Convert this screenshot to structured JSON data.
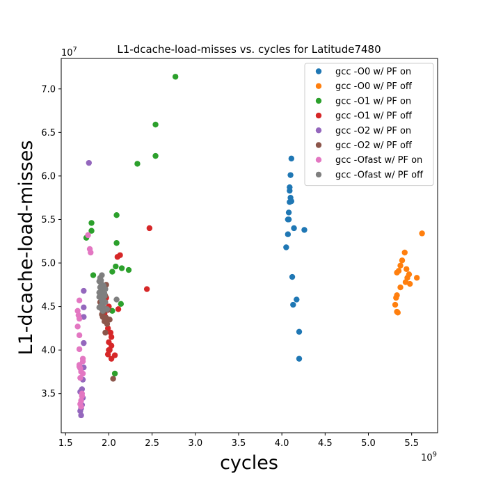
{
  "chart_data": {
    "type": "scatter",
    "title": "L1-dcache-load-misses vs. cycles for Latitude7480",
    "xlabel": "cycles",
    "ylabel": "L1-dcache-load-misses",
    "x_multiplier_label": "1e9",
    "y_multiplier_label": "1e7",
    "xlim": [
      1.45,
      5.8
    ],
    "ylim": [
      3.05,
      7.35
    ],
    "xticks": [
      1.5,
      2.0,
      2.5,
      3.0,
      3.5,
      4.0,
      4.5,
      5.0,
      5.5
    ],
    "xtick_labels": [
      "1.5",
      "2.0",
      "2.5",
      "3.0",
      "3.5",
      "4.0",
      "4.5",
      "5.0",
      "5.5"
    ],
    "yticks": [
      3.5,
      4.0,
      4.5,
      5.0,
      5.5,
      6.0,
      6.5,
      7.0
    ],
    "ytick_labels": [
      "3.5",
      "4.0",
      "4.5",
      "5.0",
      "5.5",
      "6.0",
      "6.5",
      "7.0"
    ],
    "grid": false,
    "legend_position": "top-right",
    "series": [
      {
        "name": "gcc -O0 w/ PF on",
        "color": "#1f77b4",
        "points": [
          [
            4.11,
            6.2
          ],
          [
            4.1,
            6.01
          ],
          [
            4.09,
            5.87
          ],
          [
            4.09,
            5.83
          ],
          [
            4.1,
            5.75
          ],
          [
            4.09,
            5.7
          ],
          [
            4.11,
            5.71
          ],
          [
            4.08,
            5.58
          ],
          [
            4.07,
            5.5
          ],
          [
            4.08,
            5.5
          ],
          [
            4.14,
            5.4
          ],
          [
            4.26,
            5.38
          ],
          [
            4.07,
            5.33
          ],
          [
            4.05,
            5.18
          ],
          [
            4.12,
            4.84
          ],
          [
            4.17,
            4.58
          ],
          [
            4.13,
            4.52
          ],
          [
            4.2,
            4.21
          ],
          [
            4.2,
            3.9
          ]
        ]
      },
      {
        "name": "gcc -O0 w/ PF off",
        "color": "#ff7f0e",
        "points": [
          [
            5.62,
            5.34
          ],
          [
            5.42,
            5.12
          ],
          [
            5.39,
            5.03
          ],
          [
            5.37,
            4.97
          ],
          [
            5.35,
            4.91
          ],
          [
            5.44,
            4.93
          ],
          [
            5.33,
            4.89
          ],
          [
            5.47,
            4.87
          ],
          [
            5.45,
            4.83
          ],
          [
            5.56,
            4.83
          ],
          [
            5.43,
            4.78
          ],
          [
            5.48,
            4.76
          ],
          [
            5.37,
            4.72
          ],
          [
            5.33,
            4.63
          ],
          [
            5.32,
            4.6
          ],
          [
            5.31,
            4.52
          ],
          [
            5.33,
            4.44
          ],
          [
            5.34,
            4.43
          ]
        ]
      },
      {
        "name": "gcc -O1 w/ PF on",
        "color": "#2ca02c",
        "points": [
          [
            2.77,
            7.14
          ],
          [
            2.54,
            6.59
          ],
          [
            2.54,
            6.23
          ],
          [
            2.33,
            6.14
          ],
          [
            2.09,
            5.55
          ],
          [
            1.8,
            5.46
          ],
          [
            1.8,
            5.37
          ],
          [
            1.74,
            5.29
          ],
          [
            2.09,
            5.23
          ],
          [
            2.08,
            4.96
          ],
          [
            2.15,
            4.94
          ],
          [
            2.23,
            4.92
          ],
          [
            2.04,
            4.9
          ],
          [
            1.82,
            4.86
          ],
          [
            2.14,
            4.53
          ],
          [
            2.04,
            4.45
          ],
          [
            2.07,
            3.73
          ]
        ]
      },
      {
        "name": "gcc -O1 w/ PF off",
        "color": "#d62728",
        "points": [
          [
            2.47,
            5.4
          ],
          [
            2.13,
            5.09
          ],
          [
            2.1,
            5.07
          ],
          [
            2.44,
            4.7
          ],
          [
            2.11,
            4.47
          ],
          [
            2.03,
            4.15
          ],
          [
            2.0,
            4.09
          ],
          [
            2.03,
            4.05
          ],
          [
            2.01,
            4.0
          ],
          [
            1.99,
            3.95
          ],
          [
            2.07,
            3.94
          ],
          [
            2.03,
            3.9
          ],
          [
            1.98,
            4.35
          ],
          [
            2.0,
            4.5
          ],
          [
            1.96,
            4.38
          ],
          [
            1.95,
            4.42
          ],
          [
            1.97,
            4.6
          ],
          [
            1.99,
            4.25
          ],
          [
            2.02,
            4.2
          ],
          [
            2.0,
            4.0
          ]
        ]
      },
      {
        "name": "gcc -O2 w/ PF on",
        "color": "#9467bd",
        "points": [
          [
            1.77,
            6.15
          ],
          [
            1.71,
            4.68
          ],
          [
            1.71,
            4.49
          ],
          [
            1.71,
            4.38
          ],
          [
            1.71,
            4.08
          ],
          [
            1.71,
            3.8
          ],
          [
            1.7,
            3.66
          ],
          [
            1.69,
            3.55
          ],
          [
            1.67,
            3.52
          ],
          [
            1.68,
            3.33
          ],
          [
            1.67,
            3.3
          ],
          [
            1.68,
            3.25
          ],
          [
            1.69,
            3.37
          ],
          [
            1.7,
            3.45
          ]
        ]
      },
      {
        "name": "gcc -O2 w/ PF off",
        "color": "#8c564b",
        "points": [
          [
            1.97,
            4.75
          ],
          [
            1.94,
            4.67
          ],
          [
            1.96,
            4.62
          ],
          [
            1.9,
            4.55
          ],
          [
            1.93,
            4.5
          ],
          [
            1.91,
            4.48
          ],
          [
            1.94,
            4.44
          ],
          [
            1.92,
            4.41
          ],
          [
            1.97,
            4.37
          ],
          [
            2.01,
            4.35
          ],
          [
            1.95,
            4.33
          ],
          [
            1.98,
            4.3
          ],
          [
            1.96,
            4.2
          ],
          [
            2.05,
            3.67
          ],
          [
            1.93,
            4.38
          ],
          [
            1.99,
            4.46
          ]
        ]
      },
      {
        "name": "gcc -Ofast w/ PF on",
        "color": "#e377c2",
        "points": [
          [
            1.76,
            5.32
          ],
          [
            1.78,
            5.16
          ],
          [
            1.79,
            5.12
          ],
          [
            1.66,
            4.57
          ],
          [
            1.64,
            4.45
          ],
          [
            1.65,
            4.4
          ],
          [
            1.66,
            4.36
          ],
          [
            1.64,
            4.27
          ],
          [
            1.66,
            4.17
          ],
          [
            1.66,
            4.01
          ],
          [
            1.7,
            3.9
          ],
          [
            1.7,
            3.87
          ],
          [
            1.66,
            3.83
          ],
          [
            1.67,
            3.79
          ],
          [
            1.68,
            3.75
          ],
          [
            1.7,
            3.73
          ],
          [
            1.67,
            3.68
          ],
          [
            1.69,
            3.5
          ],
          [
            1.69,
            3.47
          ],
          [
            1.68,
            3.42
          ],
          [
            1.67,
            3.38
          ],
          [
            1.68,
            3.35
          ],
          [
            1.66,
            3.81
          ]
        ]
      },
      {
        "name": "gcc -Ofast w/ PF off",
        "color": "#7f7f7f",
        "points": [
          [
            1.92,
            4.86
          ],
          [
            1.9,
            4.83
          ],
          [
            1.89,
            4.79
          ],
          [
            1.91,
            4.77
          ],
          [
            1.94,
            4.74
          ],
          [
            1.9,
            4.72
          ],
          [
            1.92,
            4.68
          ],
          [
            1.89,
            4.66
          ],
          [
            1.95,
            4.65
          ],
          [
            1.91,
            4.63
          ],
          [
            1.89,
            4.61
          ],
          [
            1.93,
            4.59
          ],
          [
            2.09,
            4.58
          ],
          [
            1.96,
            4.55
          ],
          [
            1.93,
            4.54
          ],
          [
            1.91,
            4.51
          ],
          [
            1.94,
            4.49
          ],
          [
            1.89,
            4.49
          ],
          [
            1.98,
            4.47
          ],
          [
            1.93,
            4.45
          ],
          [
            1.91,
            4.8
          ],
          [
            1.96,
            4.7
          ],
          [
            1.92,
            4.57
          ],
          [
            1.95,
            4.62
          ]
        ]
      }
    ]
  }
}
